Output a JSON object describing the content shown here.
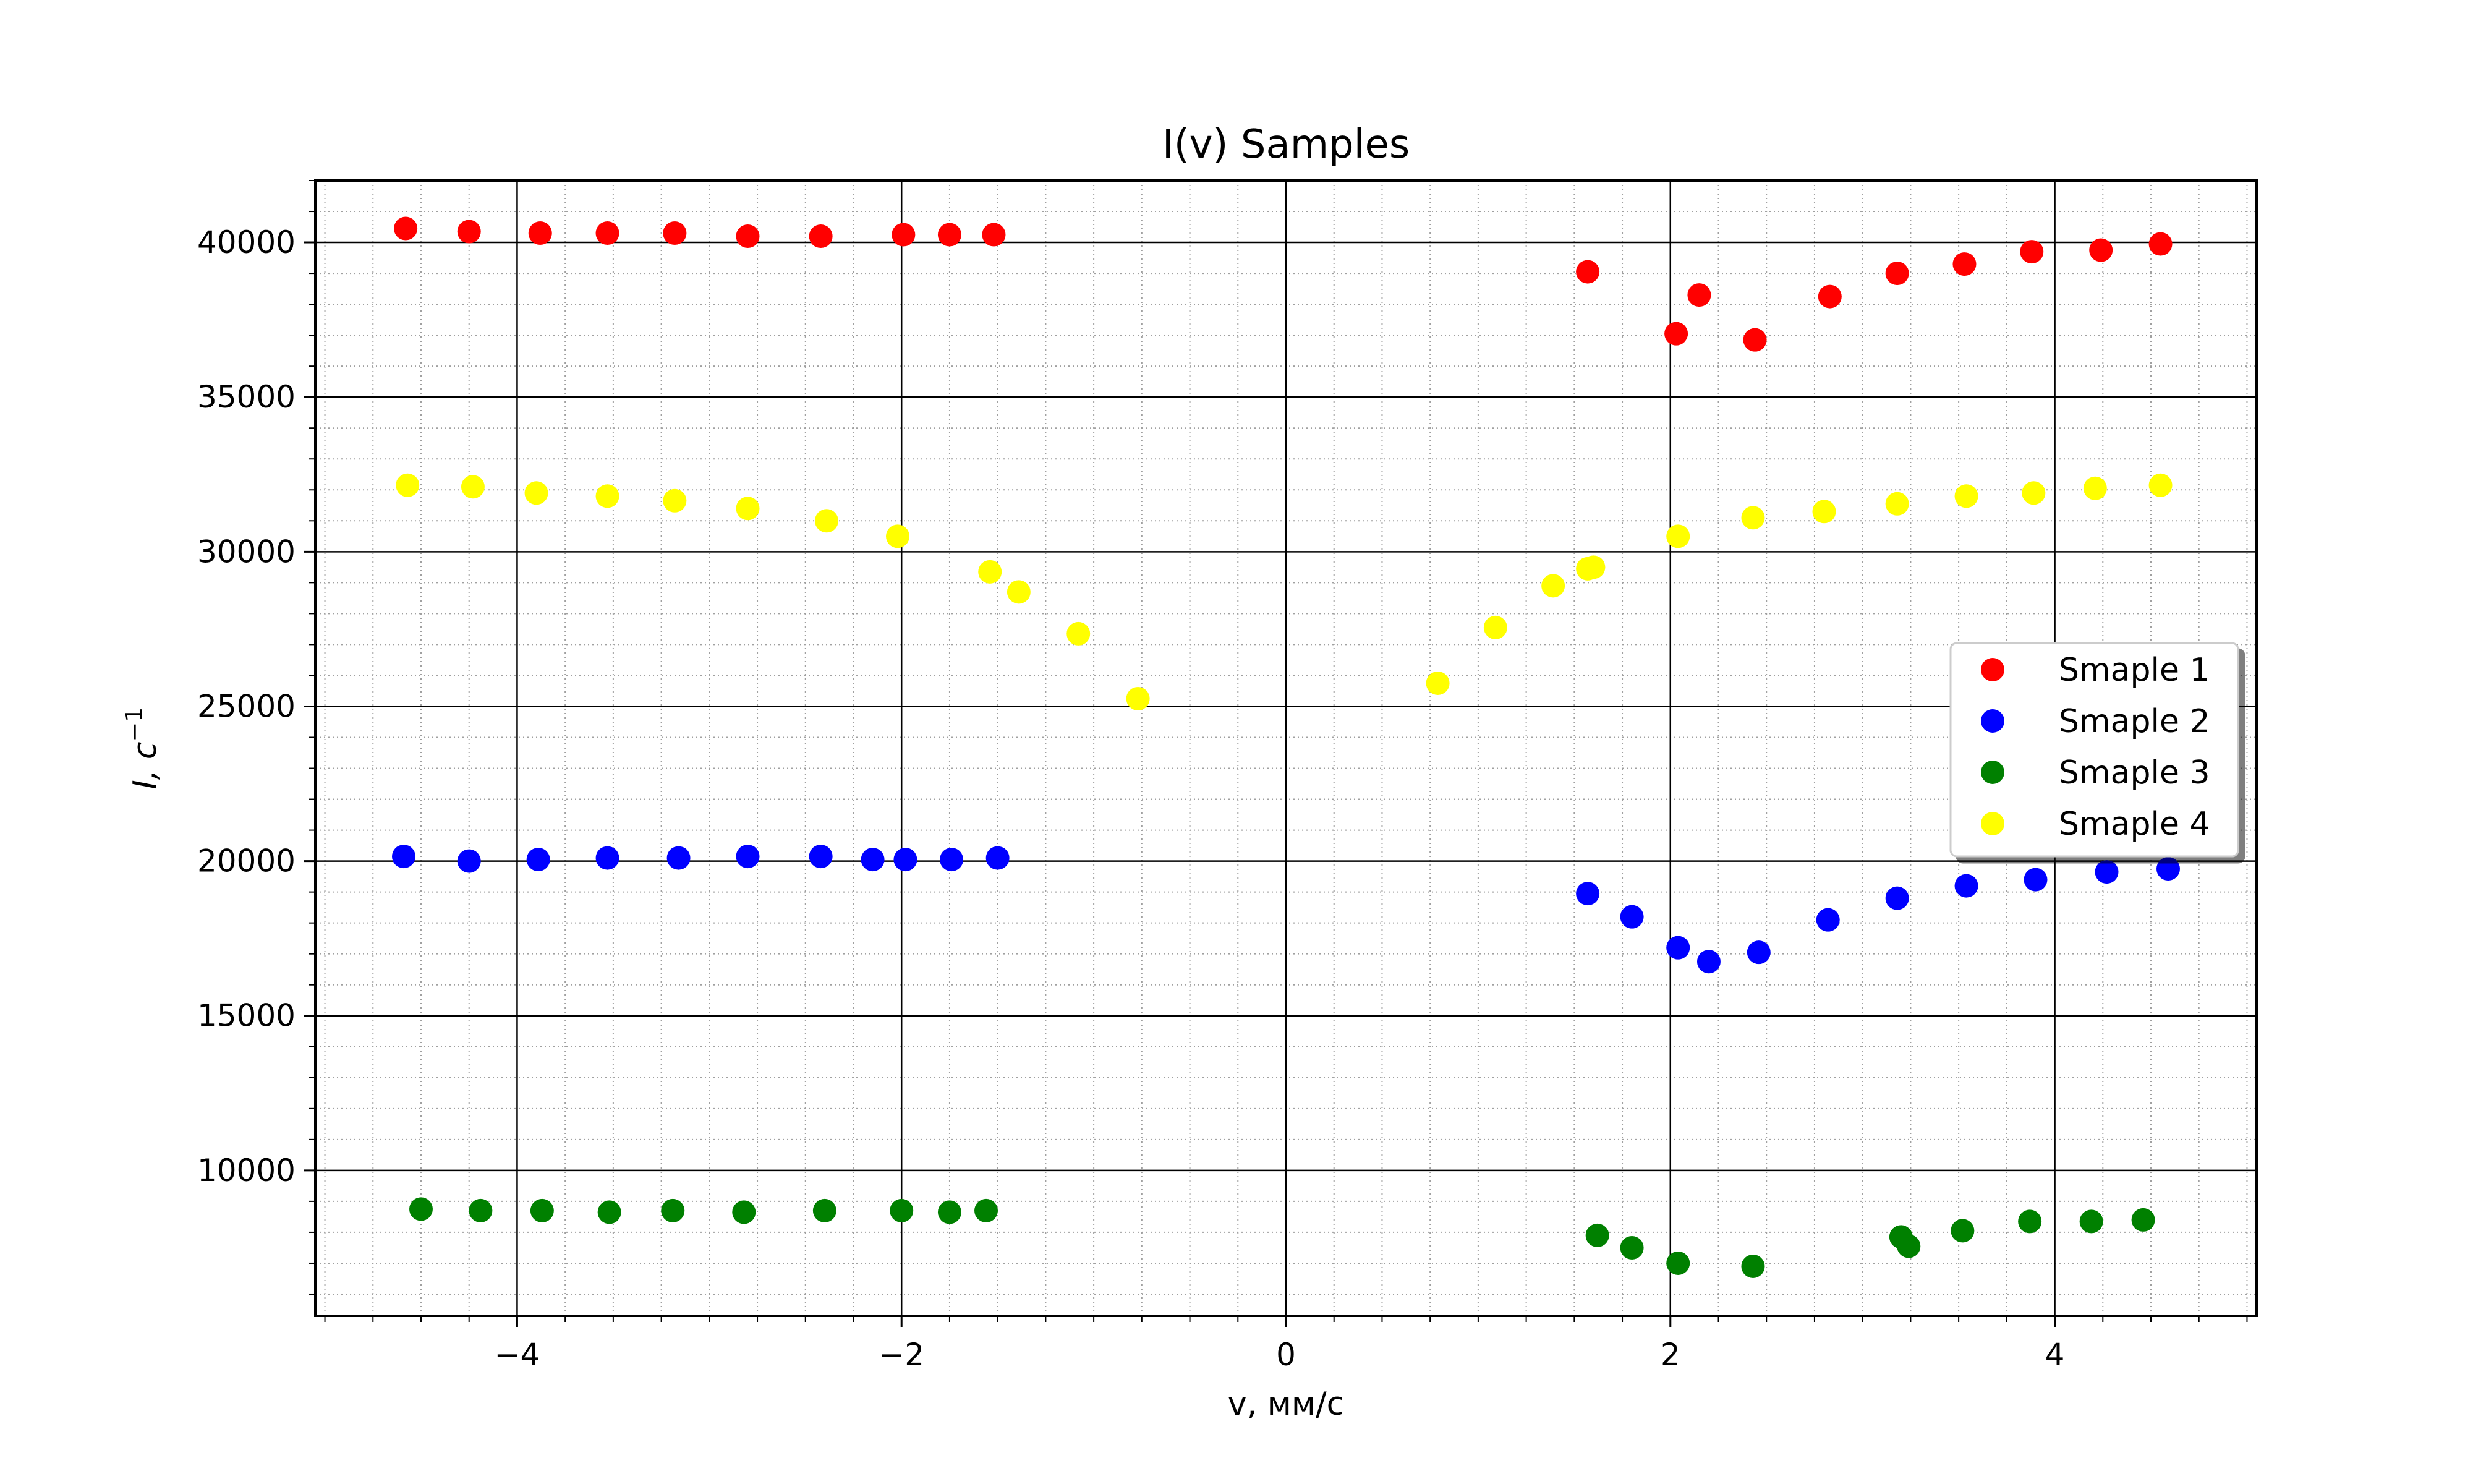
{
  "chart_data": {
    "type": "scatter",
    "title": "I(v) Samples",
    "xlabel": "v, мм/с",
    "ylabel_base": "I, c",
    "ylabel_sup": "−1",
    "xlim": [
      -5.05,
      5.05
    ],
    "ylim": [
      5300,
      42000
    ],
    "x_ticks": [
      {
        "value": -4,
        "label": "−4"
      },
      {
        "value": -2,
        "label": "−2"
      },
      {
        "value": 0,
        "label": "0"
      },
      {
        "value": 2,
        "label": "2"
      },
      {
        "value": 4,
        "label": "4"
      }
    ],
    "y_ticks": [
      {
        "value": 10000,
        "label": "10000"
      },
      {
        "value": 15000,
        "label": "15000"
      },
      {
        "value": 20000,
        "label": "20000"
      },
      {
        "value": 25000,
        "label": "25000"
      },
      {
        "value": 30000,
        "label": "30000"
      },
      {
        "value": 35000,
        "label": "35000"
      },
      {
        "value": 40000,
        "label": "40000"
      }
    ],
    "grid": {
      "major": true,
      "minor": true
    },
    "legend_position": "center-right",
    "series": [
      {
        "name": "Smaple 1",
        "color": "#ff0000",
        "points": [
          [
            -4.58,
            40450
          ],
          [
            -4.25,
            40350
          ],
          [
            -3.88,
            40300
          ],
          [
            -3.53,
            40300
          ],
          [
            -3.18,
            40300
          ],
          [
            -2.8,
            40200
          ],
          [
            -2.42,
            40200
          ],
          [
            -1.99,
            40250
          ],
          [
            -1.75,
            40250
          ],
          [
            -1.52,
            40250
          ],
          [
            1.57,
            39050
          ],
          [
            2.03,
            37050
          ],
          [
            2.15,
            38300
          ],
          [
            2.44,
            36850
          ],
          [
            2.83,
            38250
          ],
          [
            3.18,
            39000
          ],
          [
            3.53,
            39300
          ],
          [
            3.88,
            39700
          ],
          [
            4.24,
            39750
          ],
          [
            4.55,
            39950
          ]
        ]
      },
      {
        "name": "Smaple 2",
        "color": "#0000ff",
        "points": [
          [
            -4.59,
            20150
          ],
          [
            -4.25,
            20000
          ],
          [
            -3.89,
            20050
          ],
          [
            -3.53,
            20100
          ],
          [
            -3.16,
            20100
          ],
          [
            -2.8,
            20150
          ],
          [
            -2.42,
            20150
          ],
          [
            -2.15,
            20050
          ],
          [
            -1.98,
            20050
          ],
          [
            -1.74,
            20050
          ],
          [
            -1.5,
            20100
          ],
          [
            1.57,
            18950
          ],
          [
            1.8,
            18200
          ],
          [
            2.04,
            17200
          ],
          [
            2.2,
            16750
          ],
          [
            2.46,
            17050
          ],
          [
            2.82,
            18100
          ],
          [
            3.18,
            18800
          ],
          [
            3.54,
            19200
          ],
          [
            3.9,
            19400
          ],
          [
            4.27,
            19650
          ],
          [
            4.59,
            19750
          ]
        ]
      },
      {
        "name": "Smaple 3",
        "color": "#008000",
        "points": [
          [
            -4.5,
            8750
          ],
          [
            -4.19,
            8700
          ],
          [
            -3.87,
            8700
          ],
          [
            -3.52,
            8650
          ],
          [
            -3.19,
            8700
          ],
          [
            -2.82,
            8650
          ],
          [
            -2.4,
            8700
          ],
          [
            -2.0,
            8700
          ],
          [
            -1.75,
            8650
          ],
          [
            -1.56,
            8700
          ],
          [
            1.62,
            7900
          ],
          [
            1.8,
            7500
          ],
          [
            2.04,
            7000
          ],
          [
            2.43,
            6900
          ],
          [
            3.2,
            7850
          ],
          [
            3.24,
            7550
          ],
          [
            3.52,
            8050
          ],
          [
            3.87,
            8350
          ],
          [
            4.19,
            8350
          ],
          [
            4.46,
            8400
          ]
        ]
      },
      {
        "name": "Smaple 4",
        "color": "#ffff00",
        "points": [
          [
            -4.57,
            32150
          ],
          [
            -4.23,
            32100
          ],
          [
            -3.9,
            31900
          ],
          [
            -3.53,
            31800
          ],
          [
            -3.18,
            31650
          ],
          [
            -2.8,
            31400
          ],
          [
            -2.39,
            31000
          ],
          [
            -2.02,
            30500
          ],
          [
            -1.54,
            29350
          ],
          [
            -1.39,
            28700
          ],
          [
            -1.08,
            27350
          ],
          [
            -0.77,
            25250
          ],
          [
            0.79,
            25750
          ],
          [
            1.09,
            27550
          ],
          [
            1.39,
            28900
          ],
          [
            1.57,
            29450
          ],
          [
            1.6,
            29500
          ],
          [
            2.04,
            30500
          ],
          [
            2.43,
            31100
          ],
          [
            2.8,
            31300
          ],
          [
            3.18,
            31550
          ],
          [
            3.54,
            31800
          ],
          [
            3.89,
            31900
          ],
          [
            4.21,
            32050
          ],
          [
            4.55,
            32150
          ]
        ]
      }
    ]
  }
}
